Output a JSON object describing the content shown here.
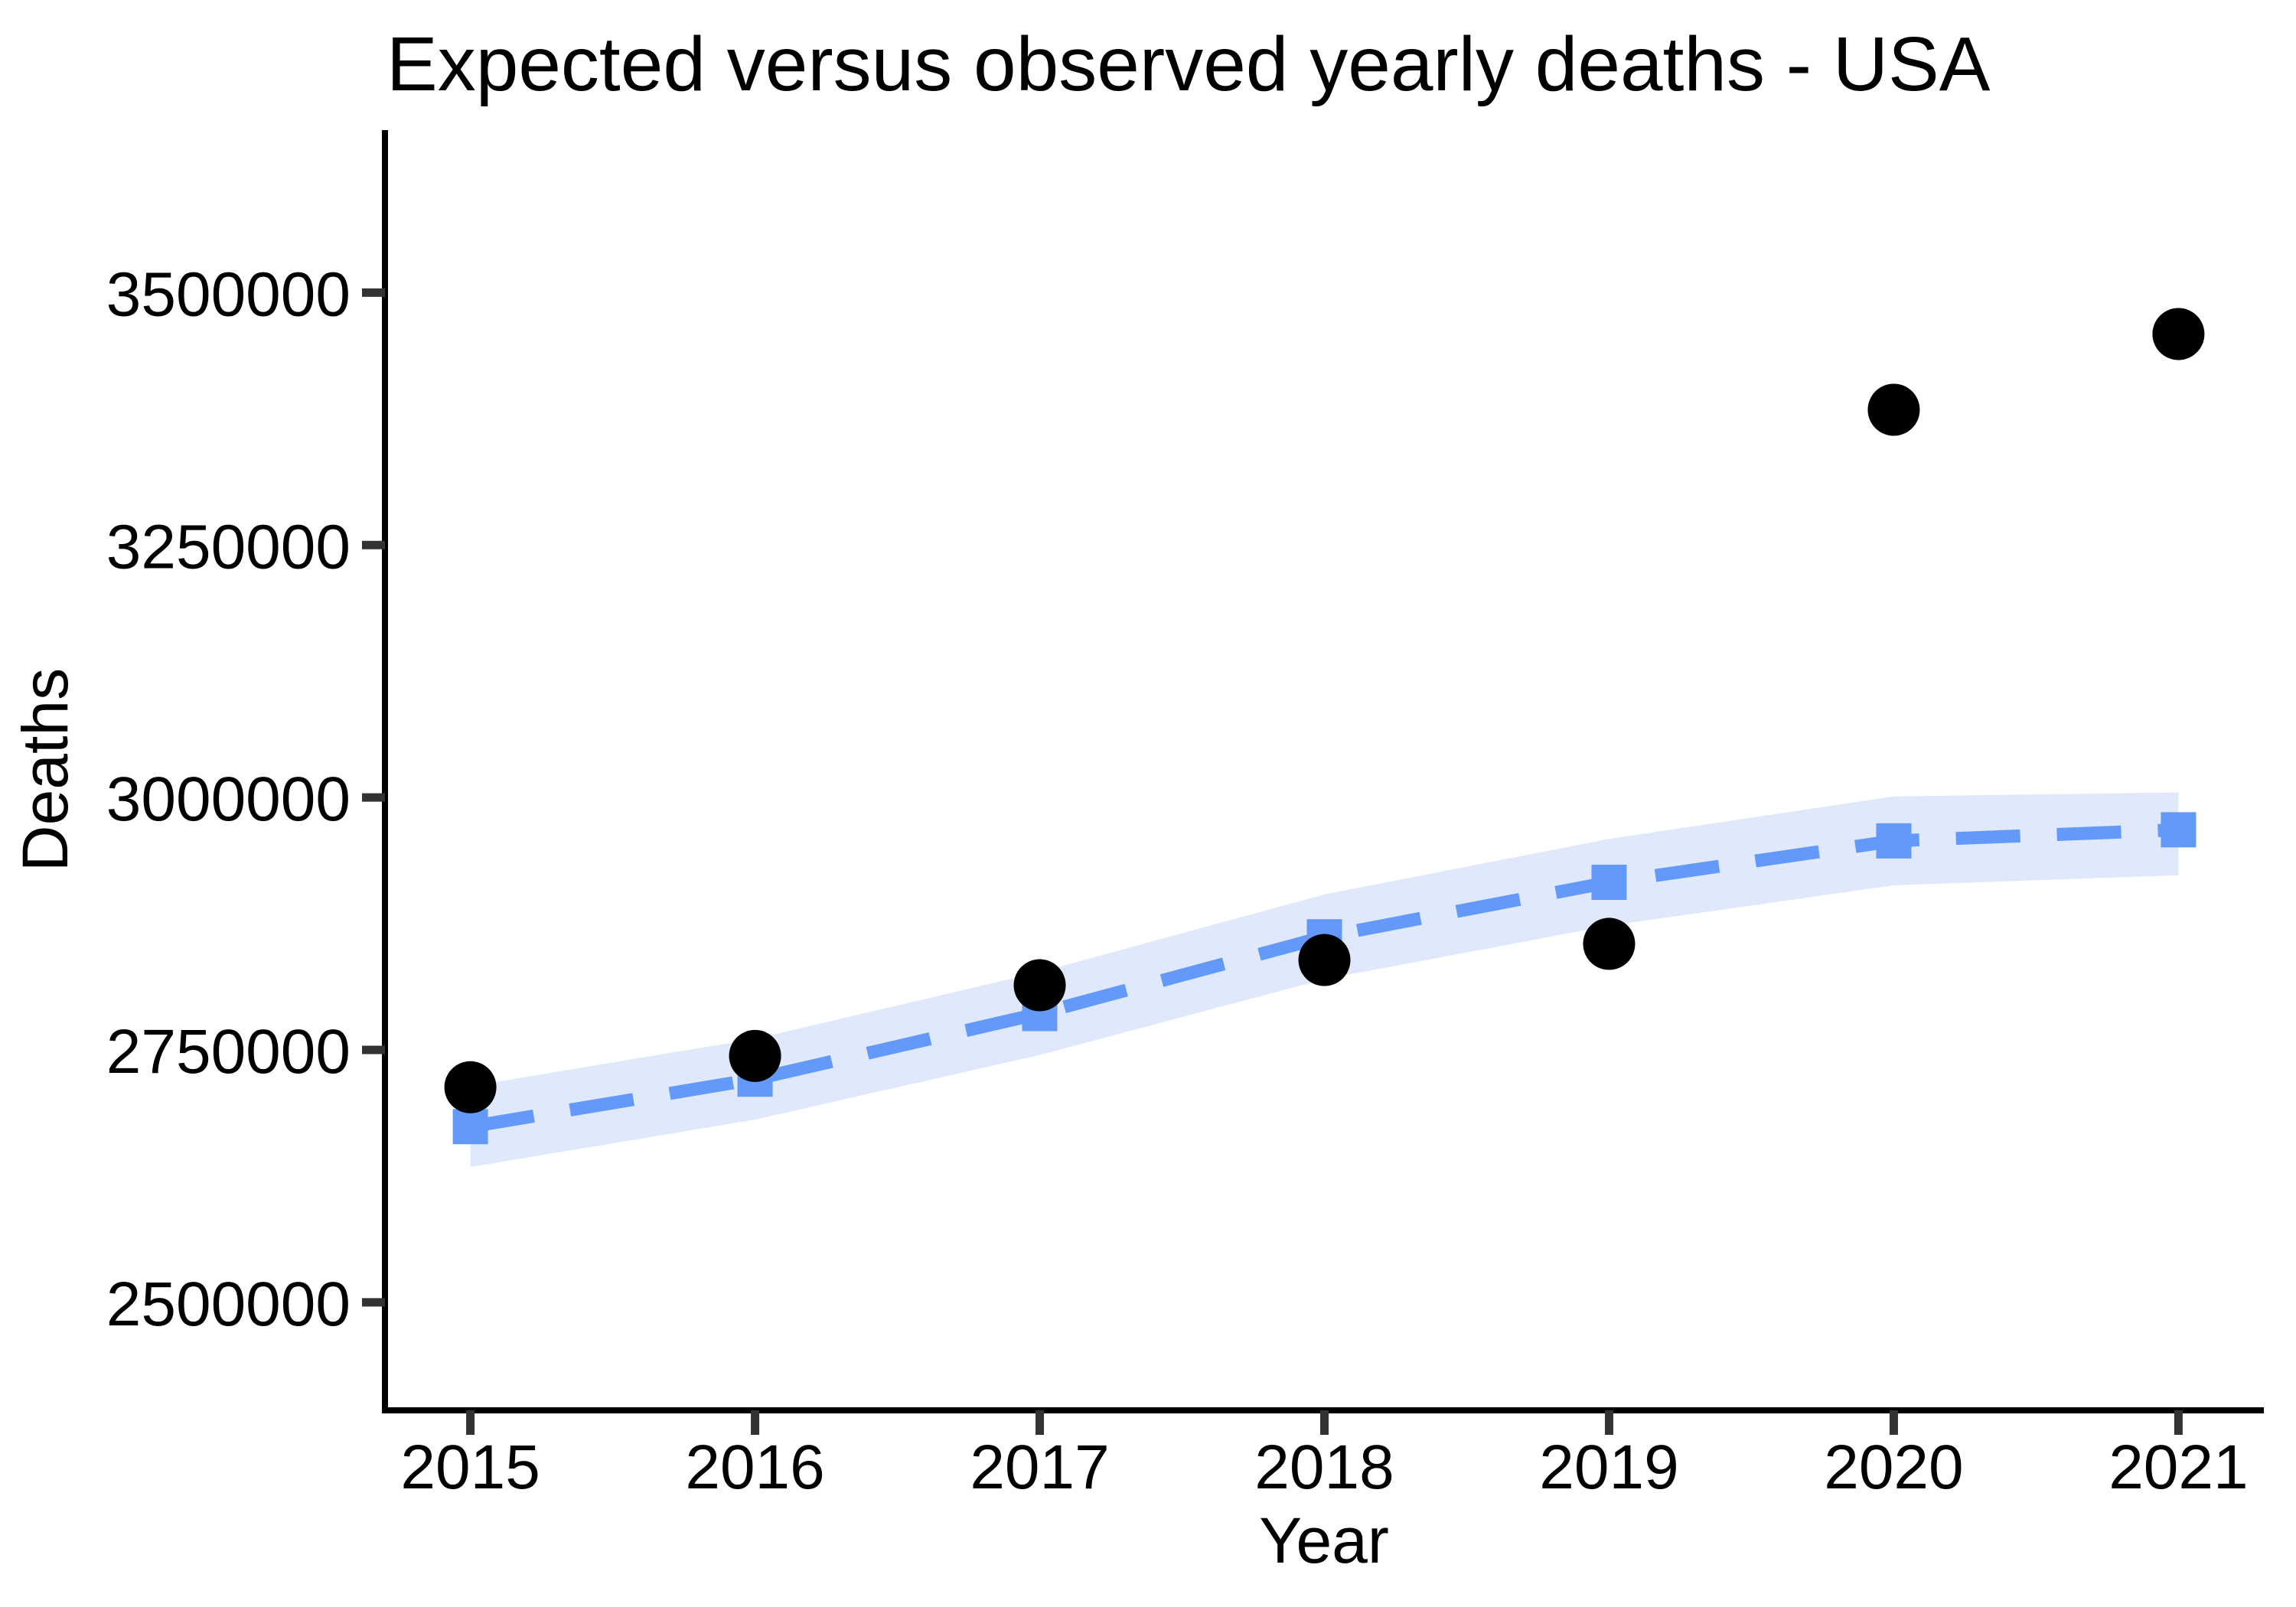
{
  "figure": {
    "title": "Expected versus observed yearly deaths - USA"
  },
  "chart_data": {
    "type": "line",
    "title": "Expected versus observed yearly deaths - USA",
    "xlabel": "Year",
    "ylabel": "Deaths",
    "x": [
      2015,
      2016,
      2017,
      2018,
      2019,
      2020,
      2021
    ],
    "xtick_labels": [
      "2015",
      "2016",
      "2017",
      "2018",
      "2019",
      "2020",
      "2021"
    ],
    "ytick_values": [
      2500000,
      2750000,
      3000000,
      3250000,
      3500000
    ],
    "ytick_labels": [
      "2500000",
      "2750000",
      "3000000",
      "3250000",
      "3500000"
    ],
    "xlim": [
      2014.7,
      2021.3
    ],
    "ylim": [
      2393000,
      3661000
    ],
    "grid": false,
    "legend_position": "none",
    "series": [
      {
        "name": "observed",
        "type": "scatter",
        "marker": "circle",
        "color": "#000000",
        "values": [
          2713000,
          2744000,
          2814000,
          2839000,
          2855000,
          3384000,
          3459000
        ]
      },
      {
        "name": "expected",
        "type": "line",
        "linestyle": "dashed",
        "marker": "square",
        "color": "#639AFA",
        "values": [
          2674000,
          2721000,
          2786000,
          2862000,
          2916000,
          2957000,
          2968000
        ]
      },
      {
        "name": "expected_interval",
        "type": "area",
        "color": "#DFE9FB",
        "lower": [
          2634000,
          2681000,
          2745000,
          2820000,
          2873000,
          2913000,
          2923000
        ],
        "upper": [
          2714000,
          2761000,
          2827000,
          2904000,
          2959000,
          3001000,
          3005000
        ]
      }
    ],
    "colors": {
      "observed": "#000000",
      "expected": "#639AFA",
      "band": "#DFE9FB",
      "axis_line": "#000000",
      "tick_mark": "#333333",
      "text": "#000000",
      "background": "#ffffff"
    }
  }
}
